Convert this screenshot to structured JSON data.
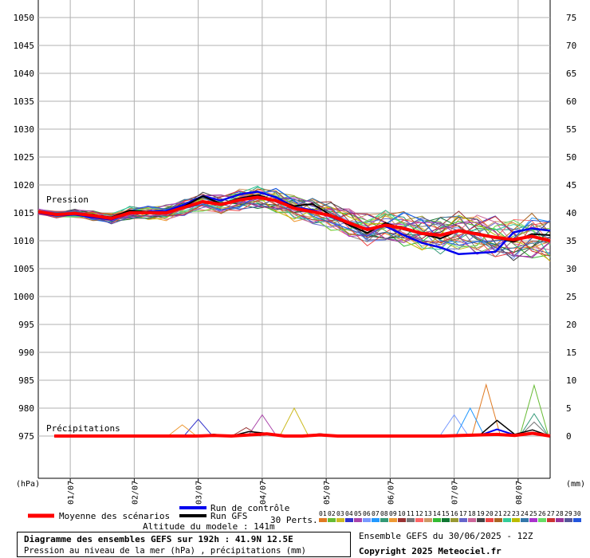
{
  "chart_data": {
    "type": "line",
    "title": "Diagramme des ensembles GEFS sur 192h : 41.9N 12.5E",
    "subtitle": "Pression au niveau de la mer (hPa) , précipitations (mm)",
    "left_unit": "(hPa)",
    "right_unit": "(mm)",
    "pressure_label": "Pression",
    "precip_label": "Précipitations",
    "left_axis": {
      "min": 975,
      "max": 1050,
      "ticks": [
        1050,
        1045,
        1040,
        1035,
        1030,
        1025,
        1020,
        1015,
        1010,
        1005,
        1000,
        995,
        990,
        985,
        980,
        975
      ]
    },
    "right_axis": {
      "min": 0,
      "max": 75,
      "ticks": [
        75,
        70,
        65,
        60,
        55,
        50,
        45,
        40,
        35,
        30,
        25,
        20,
        15,
        10,
        5,
        0
      ]
    },
    "x_hours_range": [
      0,
      192
    ],
    "date_ticks": [
      {
        "label": "01/07",
        "hour": 12
      },
      {
        "label": "02/07",
        "hour": 36
      },
      {
        "label": "03/07",
        "hour": 60
      },
      {
        "label": "04/07",
        "hour": 84
      },
      {
        "label": "05/07",
        "hour": 108
      },
      {
        "label": "06/07",
        "hour": 132
      },
      {
        "label": "07/07",
        "hour": 156
      },
      {
        "label": "08/07",
        "hour": 180
      }
    ],
    "grid": true,
    "mean_pressure": [
      1015.2,
      1014.7,
      1014.9,
      1014.5,
      1014.0,
      1015.0,
      1015.0,
      1015.0,
      1016.0,
      1017.0,
      1016.5,
      1017.3,
      1017.8,
      1017.2,
      1015.8,
      1015.2,
      1014.5,
      1013.2,
      1012.0,
      1012.8,
      1012.2,
      1011.3,
      1011.0,
      1011.8,
      1011.2,
      1010.6,
      1010.2,
      1010.8,
      1010.0
    ],
    "control_pressure": [
      1015.0,
      1014.5,
      1014.7,
      1014.2,
      1013.8,
      1015.0,
      1015.2,
      1015.3,
      1016.5,
      1018.0,
      1017.2,
      1018.3,
      1018.8,
      1017.8,
      1016.0,
      1015.5,
      1014.3,
      1013.0,
      1012.2,
      1012.6,
      1011.0,
      1009.6,
      1008.8,
      1007.6,
      1007.8,
      1008.0,
      1011.5,
      1012.2,
      1011.8
    ],
    "gfs_pressure": [
      1015.1,
      1014.6,
      1014.8,
      1014.6,
      1014.2,
      1015.4,
      1015.2,
      1015.0,
      1016.2,
      1018.0,
      1016.6,
      1017.6,
      1018.2,
      1017.2,
      1016.2,
      1016.6,
      1014.6,
      1012.8,
      1011.4,
      1013.2,
      1012.0,
      1011.2,
      1010.4,
      1011.8,
      1011.4,
      1010.6,
      1009.8,
      1011.2,
      1011.0
    ],
    "mean_precip": [
      0,
      0,
      0,
      0,
      0,
      0,
      0,
      0,
      0,
      0.1,
      0,
      0.2,
      0.4,
      0,
      0,
      0.2,
      0,
      0,
      0,
      0,
      0,
      0,
      0,
      0.1,
      0.2,
      0.3,
      0.1,
      0.5,
      0
    ],
    "control_precip": [
      0,
      0,
      0,
      0,
      0,
      0,
      0,
      0,
      0,
      0.2,
      0,
      0.3,
      0.5,
      0,
      0,
      0.3,
      0,
      0,
      0,
      0,
      0,
      0,
      0,
      0,
      0.1,
      1.2,
      0.2,
      0.6,
      0
    ],
    "gfs_precip": [
      0,
      0,
      0,
      0,
      0,
      0,
      0,
      0,
      0,
      0.3,
      0,
      0.8,
      0.5,
      0,
      0,
      0.4,
      0,
      0,
      0,
      0,
      0,
      0,
      0,
      0.2,
      0.1,
      2.8,
      0.3,
      1.1,
      0
    ],
    "member_precip_peaks": [
      {
        "m": 1,
        "hour": 168,
        "value": 9.2
      },
      {
        "m": 2,
        "hour": 186,
        "value": 9.1
      },
      {
        "m": 3,
        "hour": 96,
        "value": 5.0
      },
      {
        "m": 4,
        "hour": 60,
        "value": 3.0
      },
      {
        "m": 5,
        "hour": 84,
        "value": 3.8
      },
      {
        "m": 6,
        "hour": 156,
        "value": 3.8
      },
      {
        "m": 7,
        "hour": 162,
        "value": 5.0
      },
      {
        "m": 8,
        "hour": 186,
        "value": 4.0
      },
      {
        "m": 9,
        "hour": 54,
        "value": 2.0
      },
      {
        "m": 10,
        "hour": 78,
        "value": 1.5
      },
      {
        "m": 11,
        "hour": 186,
        "value": 2.5
      }
    ],
    "legend": {
      "mean": "Moyenne des scénarios",
      "control": "Run de contrôle",
      "gfs": "Run GFS",
      "perts": "30 Perts.",
      "altitude": "Altitude du modele : 141m"
    },
    "colors": {
      "mean": "#ff0000",
      "control": "#0000ee",
      "gfs": "#000000",
      "grid": "#b0b0b0",
      "members": [
        "#e07a22",
        "#66bb33",
        "#ccbb22",
        "#3333cc",
        "#aa44aa",
        "#7799ff",
        "#2299ff",
        "#339977",
        "#ee9933",
        "#993333",
        "#777777",
        "#ff6666",
        "#cc9966",
        "#33bb33",
        "#117733",
        "#999933",
        "#6666cc",
        "#cc6699",
        "#444444",
        "#ee4444",
        "#aa6622",
        "#33cc99",
        "#bbbb00",
        "#3377aa",
        "#aa33cc",
        "#66dd66",
        "#cc3333",
        "#993399",
        "#555599",
        "#2255dd"
      ]
    }
  },
  "member_codes": [
    "01",
    "02",
    "03",
    "04",
    "05",
    "06",
    "07",
    "08",
    "09",
    "10",
    "11",
    "12",
    "13",
    "14",
    "15",
    "16",
    "17",
    "18",
    "19",
    "20",
    "21",
    "22",
    "23",
    "24",
    "25",
    "26",
    "27",
    "28",
    "29",
    "30"
  ],
  "info": {
    "ensemble": "Ensemble GEFS du 30/06/2025 - 12Z",
    "copyright": "Copyright 2025 Meteociel.fr"
  }
}
